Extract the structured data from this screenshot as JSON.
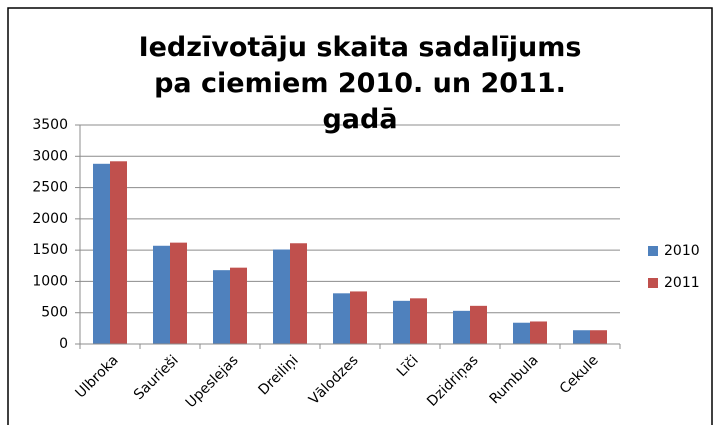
{
  "chart_data": {
    "type": "bar",
    "title": "Iedzīvotāju skaita sadalījums pa ciemiem 2010. un 2011. gadā",
    "categories": [
      "Ulbroka",
      "Saurieši",
      "Upeslejas",
      "Dreiliņi",
      "Vālodzes",
      "Līči",
      "Dzidriņas",
      "Rumbula",
      "Cekule"
    ],
    "series": [
      {
        "name": "2010",
        "color": "#4f81bd",
        "values": [
          2880,
          1570,
          1180,
          1510,
          810,
          690,
          530,
          340,
          220
        ]
      },
      {
        "name": "2011",
        "color": "#c0504d",
        "values": [
          2920,
          1620,
          1220,
          1610,
          840,
          730,
          610,
          360,
          220
        ]
      }
    ],
    "ylim": [
      0,
      3500
    ],
    "yticks": [
      0,
      500,
      1000,
      1500,
      2000,
      2500,
      3000,
      3500
    ],
    "grid": true,
    "legend": "right"
  }
}
